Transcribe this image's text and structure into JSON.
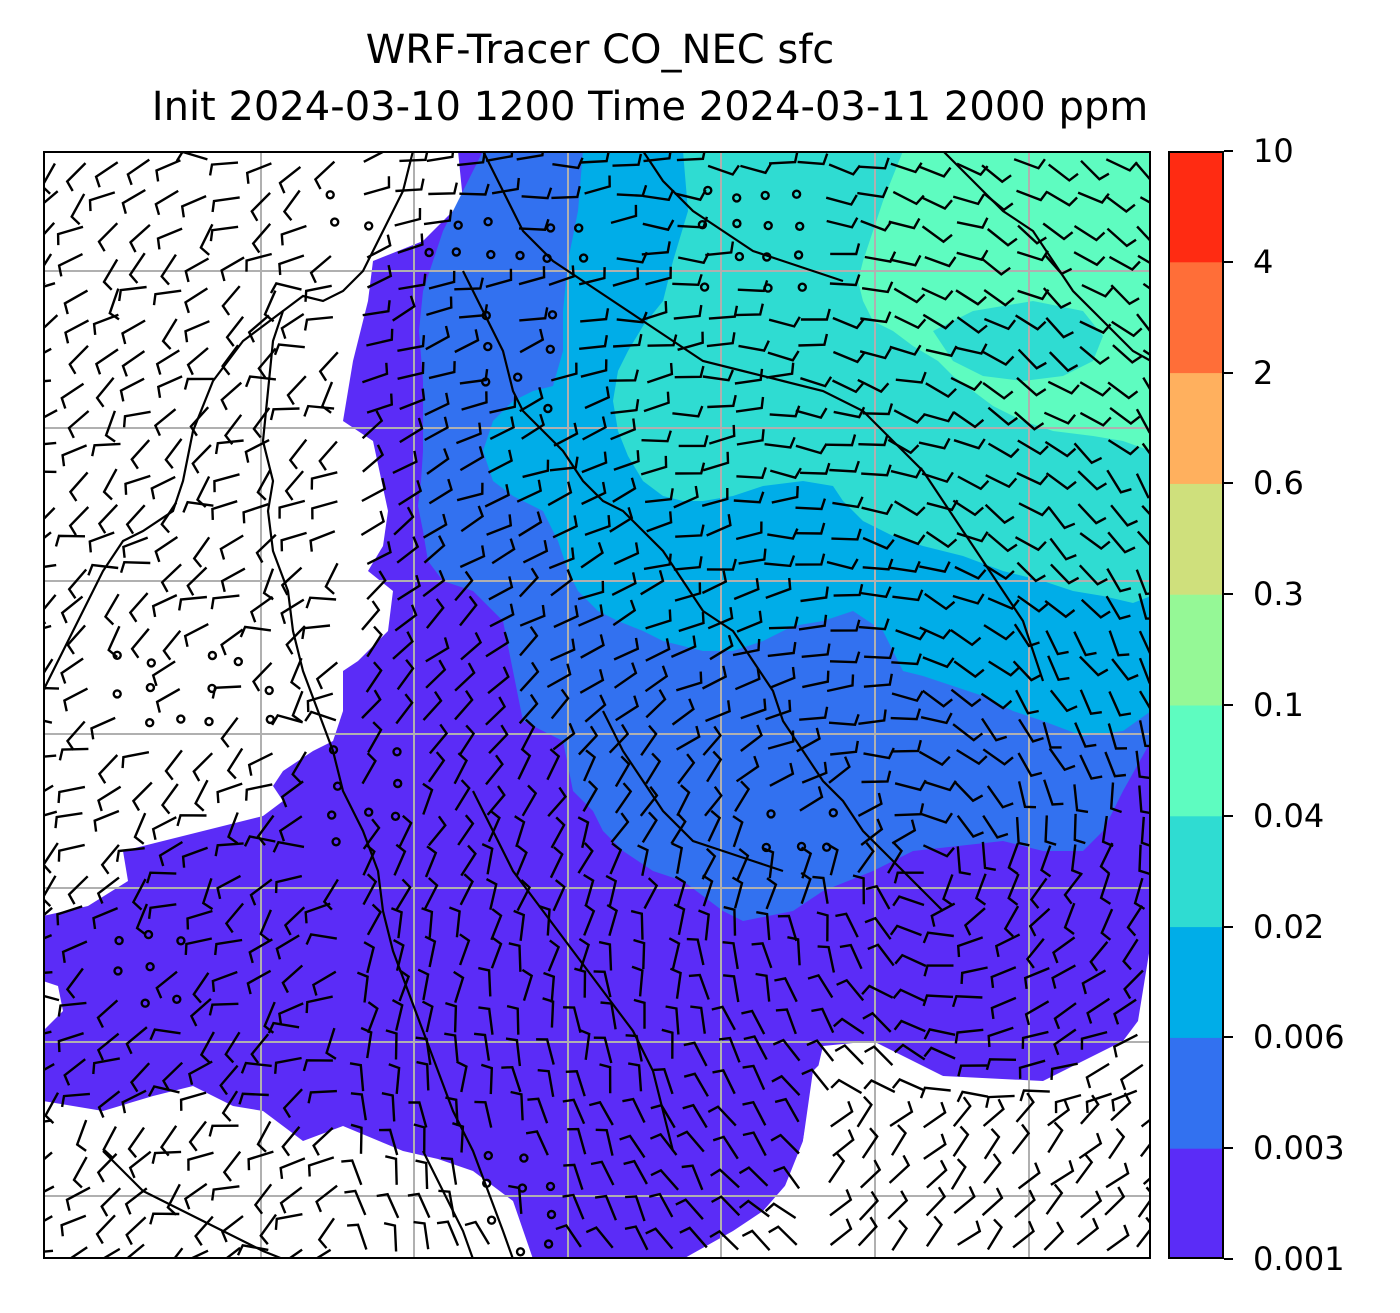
{
  "title": {
    "line1": "WRF-Tracer CO_NEC sfc",
    "line2": "Init 2024-03-10 1200 Time 2024-03-11 2000 ppm"
  },
  "colorbar": {
    "levels": [
      {
        "label": "0.001",
        "color": "#5b2cf7"
      },
      {
        "label": "0.003",
        "color": "#3271f0"
      },
      {
        "label": "0.006",
        "color": "#00ade8"
      },
      {
        "label": "0.02",
        "color": "#2fdcd2"
      },
      {
        "label": "0.04",
        "color": "#5efcc0"
      },
      {
        "label": "0.1",
        "color": "#95f896"
      },
      {
        "label": "0.3",
        "color": "#cfe07c"
      },
      {
        "label": "0.6",
        "color": "#ffb05e"
      },
      {
        "label": "2",
        "color": "#ff6e38"
      },
      {
        "label": "4",
        "color": "#ff2b12"
      },
      {
        "label": "10",
        "color": ""
      }
    ]
  },
  "map_colors": {
    "level_0_001": "#5b2cf7",
    "level_0_003": "#3271f0",
    "level_0_006": "#00ade8",
    "level_0_02": "#2fdcd2",
    "level_0_04": "#5efcc0",
    "gridline": "#b0b0b0",
    "coastline": "#000000"
  },
  "wind_barbs": "surface wind barbs and calm-wind circles over the whole domain"
}
